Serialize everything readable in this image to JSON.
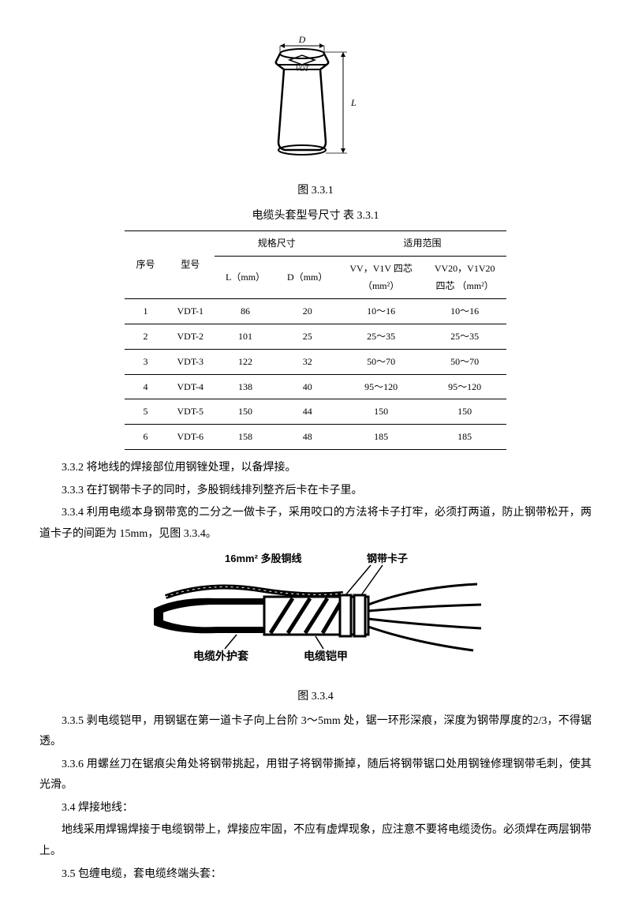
{
  "figure1": {
    "caption": "图 3.3.1",
    "label_D": "D",
    "label_L": "L",
    "label_VOT": "VOT"
  },
  "table": {
    "title": "电缆头套型号尺寸  表 3.3.1",
    "header": {
      "seq": "序号",
      "model": "型号",
      "spec": "规格尺寸",
      "scope": "适用范围",
      "col_L": "L（mm）",
      "col_D": "D（mm）",
      "col_s1a": "VV，V1V 四芯",
      "col_s1b": "（mm²）",
      "col_s2a": "VV20，V1V20",
      "col_s2b": "四芯 （mm²）"
    },
    "rows": [
      {
        "n": "1",
        "m": "VDT-1",
        "l": "86",
        "d": "20",
        "s1": "10～16",
        "s2": "10～16"
      },
      {
        "n": "2",
        "m": "VDT-2",
        "l": "101",
        "d": "25",
        "s1": "25～35",
        "s2": "25～35"
      },
      {
        "n": "3",
        "m": "VDT-3",
        "l": "122",
        "d": "32",
        "s1": "50～70",
        "s2": "50～70"
      },
      {
        "n": "4",
        "m": "VDT-4",
        "l": "138",
        "d": "40",
        "s1": "95～120",
        "s2": "95～120"
      },
      {
        "n": "5",
        "m": "VDT-5",
        "l": "150",
        "d": "44",
        "s1": "150",
        "s2": "150"
      },
      {
        "n": "6",
        "m": "VDT-6",
        "l": "158",
        "d": "48",
        "s1": "185",
        "s2": "185"
      }
    ]
  },
  "paragraphs": {
    "p332": "3.3.2 将地线的焊接部位用钢锉处理，以备焊接。",
    "p333": "3.3.3 在打钢带卡子的同时，多股铜线排列整齐后卡在卡子里。",
    "p334": "3.3.4 利用电缆本身钢带宽的二分之一做卡子，采用咬口的方法将卡子打牢，必须打两道，防止钢带松开，两道卡子的间距为 15mm，见图 3.3.4。",
    "p335": "3.3.5 剥电缆铠甲，用钢锯在第一道卡子向上台阶 3～5mm 处，锯一环形深痕，深度为钢带厚度的2/3，不得锯透。",
    "p336": "3.3.6 用螺丝刀在锯痕尖角处将钢带挑起，用钳子将钢带撕掉，随后将钢带锯口处用钢锉修理钢带毛刺，使其光滑。",
    "p34": "3.4 焊接地线：",
    "p34b": "地线采用焊锡焊接于电缆钢带上，焊接应牢固，不应有虚焊现象，应注意不要将电缆烫伤。必须焊在两层钢带上。",
    "p35": "3.5 包缠电缆，套电缆终端头套："
  },
  "figure2": {
    "caption": "图 3.3.4",
    "label1": "16mm² 多股铜线",
    "label2": "钢带卡子",
    "label3": "电缆外护套",
    "label4": "电缆铠甲"
  },
  "colors": {
    "ink": "#000000",
    "bg": "#ffffff"
  }
}
